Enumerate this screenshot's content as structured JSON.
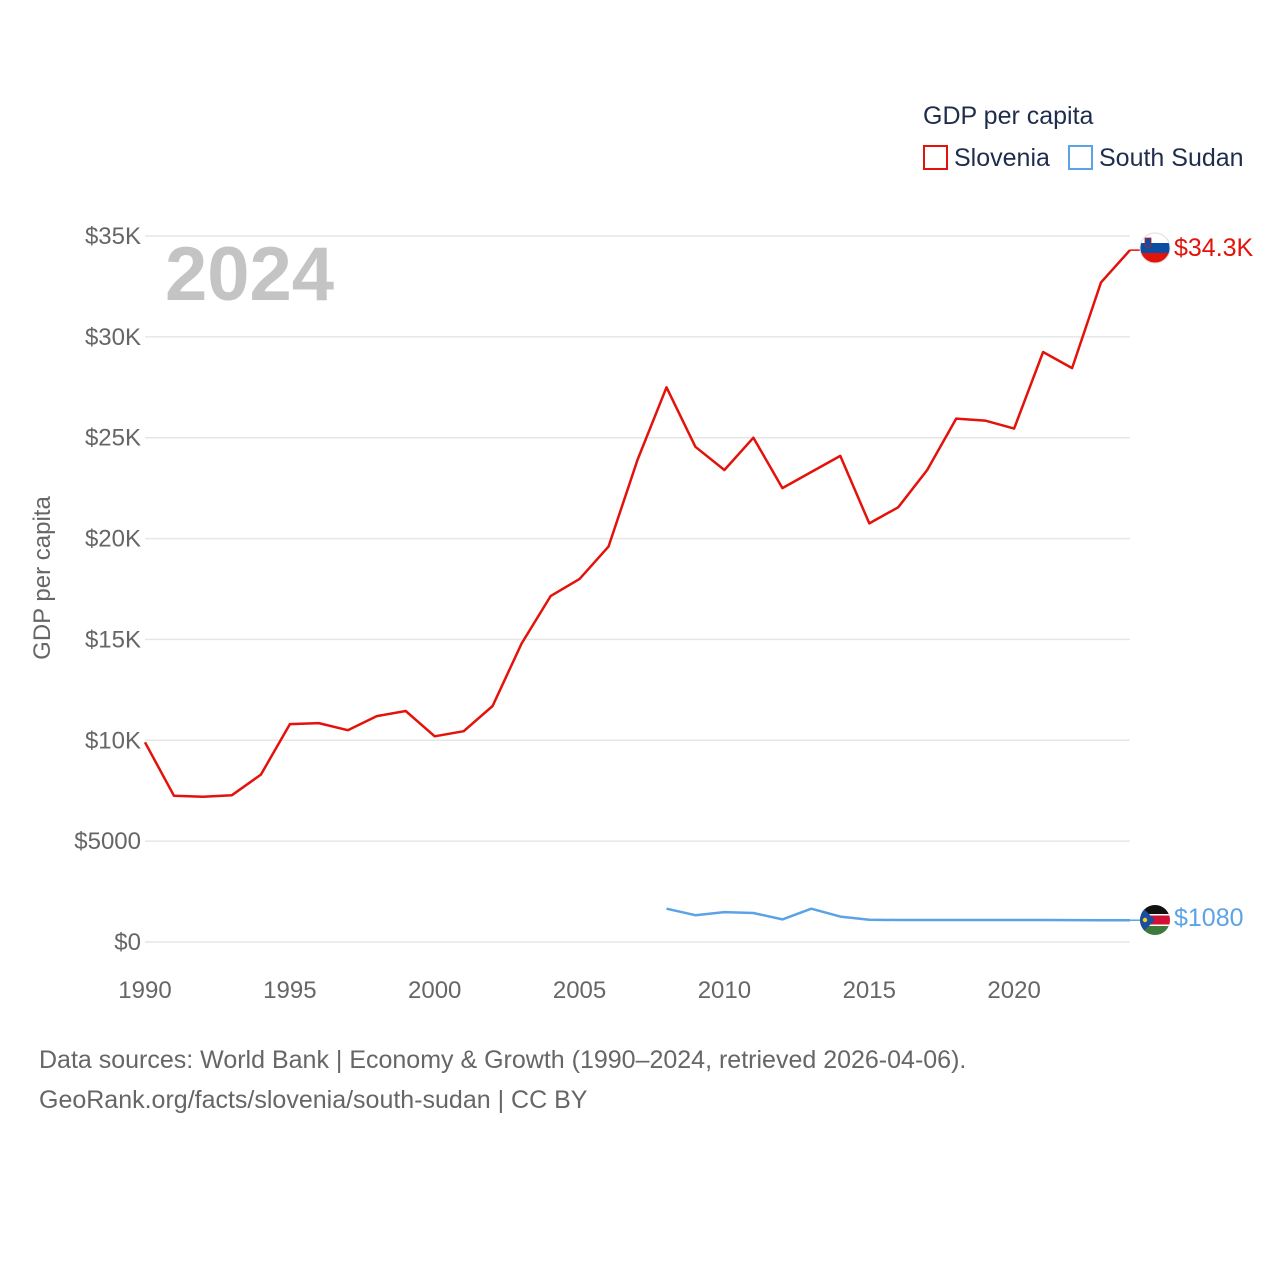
{
  "legend": {
    "title": "GDP per capita",
    "items": [
      {
        "label": "Slovenia",
        "color": "#e3120b"
      },
      {
        "label": "South Sudan",
        "color": "#5ba3e6"
      }
    ]
  },
  "current_year": "2024",
  "end_labels": {
    "slovenia": "$34.3K",
    "south_sudan": "$1080"
  },
  "source": {
    "line1": "Data sources: World Bank | Economy & Growth (1990–2024, retrieved 2026-04-06).",
    "line2": "GeoRank.org/facts/slovenia/south-sudan | CC BY"
  },
  "chart_data": {
    "type": "line",
    "title": "GDP per capita",
    "xlabel": "",
    "ylabel": "GDP per capita",
    "xlim": [
      1990,
      2024
    ],
    "ylim": [
      0,
      35000
    ],
    "grid": true,
    "legend_position": "top-right",
    "x_ticks": [
      1990,
      1995,
      2000,
      2005,
      2010,
      2015,
      2020
    ],
    "x_tick_labels": [
      "1990",
      "1995",
      "2000",
      "2005",
      "2010",
      "2015",
      "2020"
    ],
    "y_ticks": [
      0,
      5000,
      10000,
      15000,
      20000,
      25000,
      30000,
      35000
    ],
    "y_tick_labels": [
      "$0",
      "$5000",
      "$10K",
      "$15K",
      "$20K",
      "$25K",
      "$30K",
      "$35K"
    ],
    "series": [
      {
        "name": "Slovenia",
        "color": "#e3120b",
        "x": [
          1990,
          1991,
          1992,
          1993,
          1994,
          1995,
          1996,
          1997,
          1998,
          1999,
          2000,
          2001,
          2002,
          2003,
          2004,
          2005,
          2006,
          2007,
          2008,
          2009,
          2010,
          2011,
          2012,
          2013,
          2014,
          2015,
          2016,
          2017,
          2018,
          2019,
          2020,
          2021,
          2022,
          2023,
          2024
        ],
        "values": [
          9900,
          7250,
          7200,
          7280,
          8300,
          10800,
          10850,
          10500,
          11200,
          11450,
          10200,
          10450,
          11700,
          14800,
          17150,
          18000,
          19600,
          23900,
          27500,
          24550,
          23400,
          25000,
          22500,
          23300,
          24100,
          20750,
          21550,
          23400,
          25950,
          25850,
          25450,
          29250,
          28450,
          32700,
          34300
        ]
      },
      {
        "name": "South Sudan",
        "color": "#5ba3e6",
        "x": [
          2008,
          2009,
          2010,
          2011,
          2012,
          2013,
          2014,
          2015,
          2016,
          2017,
          2018,
          2019,
          2020,
          2021,
          2022,
          2023,
          2024
        ],
        "values": [
          1650,
          1330,
          1480,
          1440,
          1120,
          1650,
          1260,
          1100,
          1090,
          1090,
          1090,
          1090,
          1090,
          1090,
          1085,
          1082,
          1080
        ]
      }
    ]
  }
}
